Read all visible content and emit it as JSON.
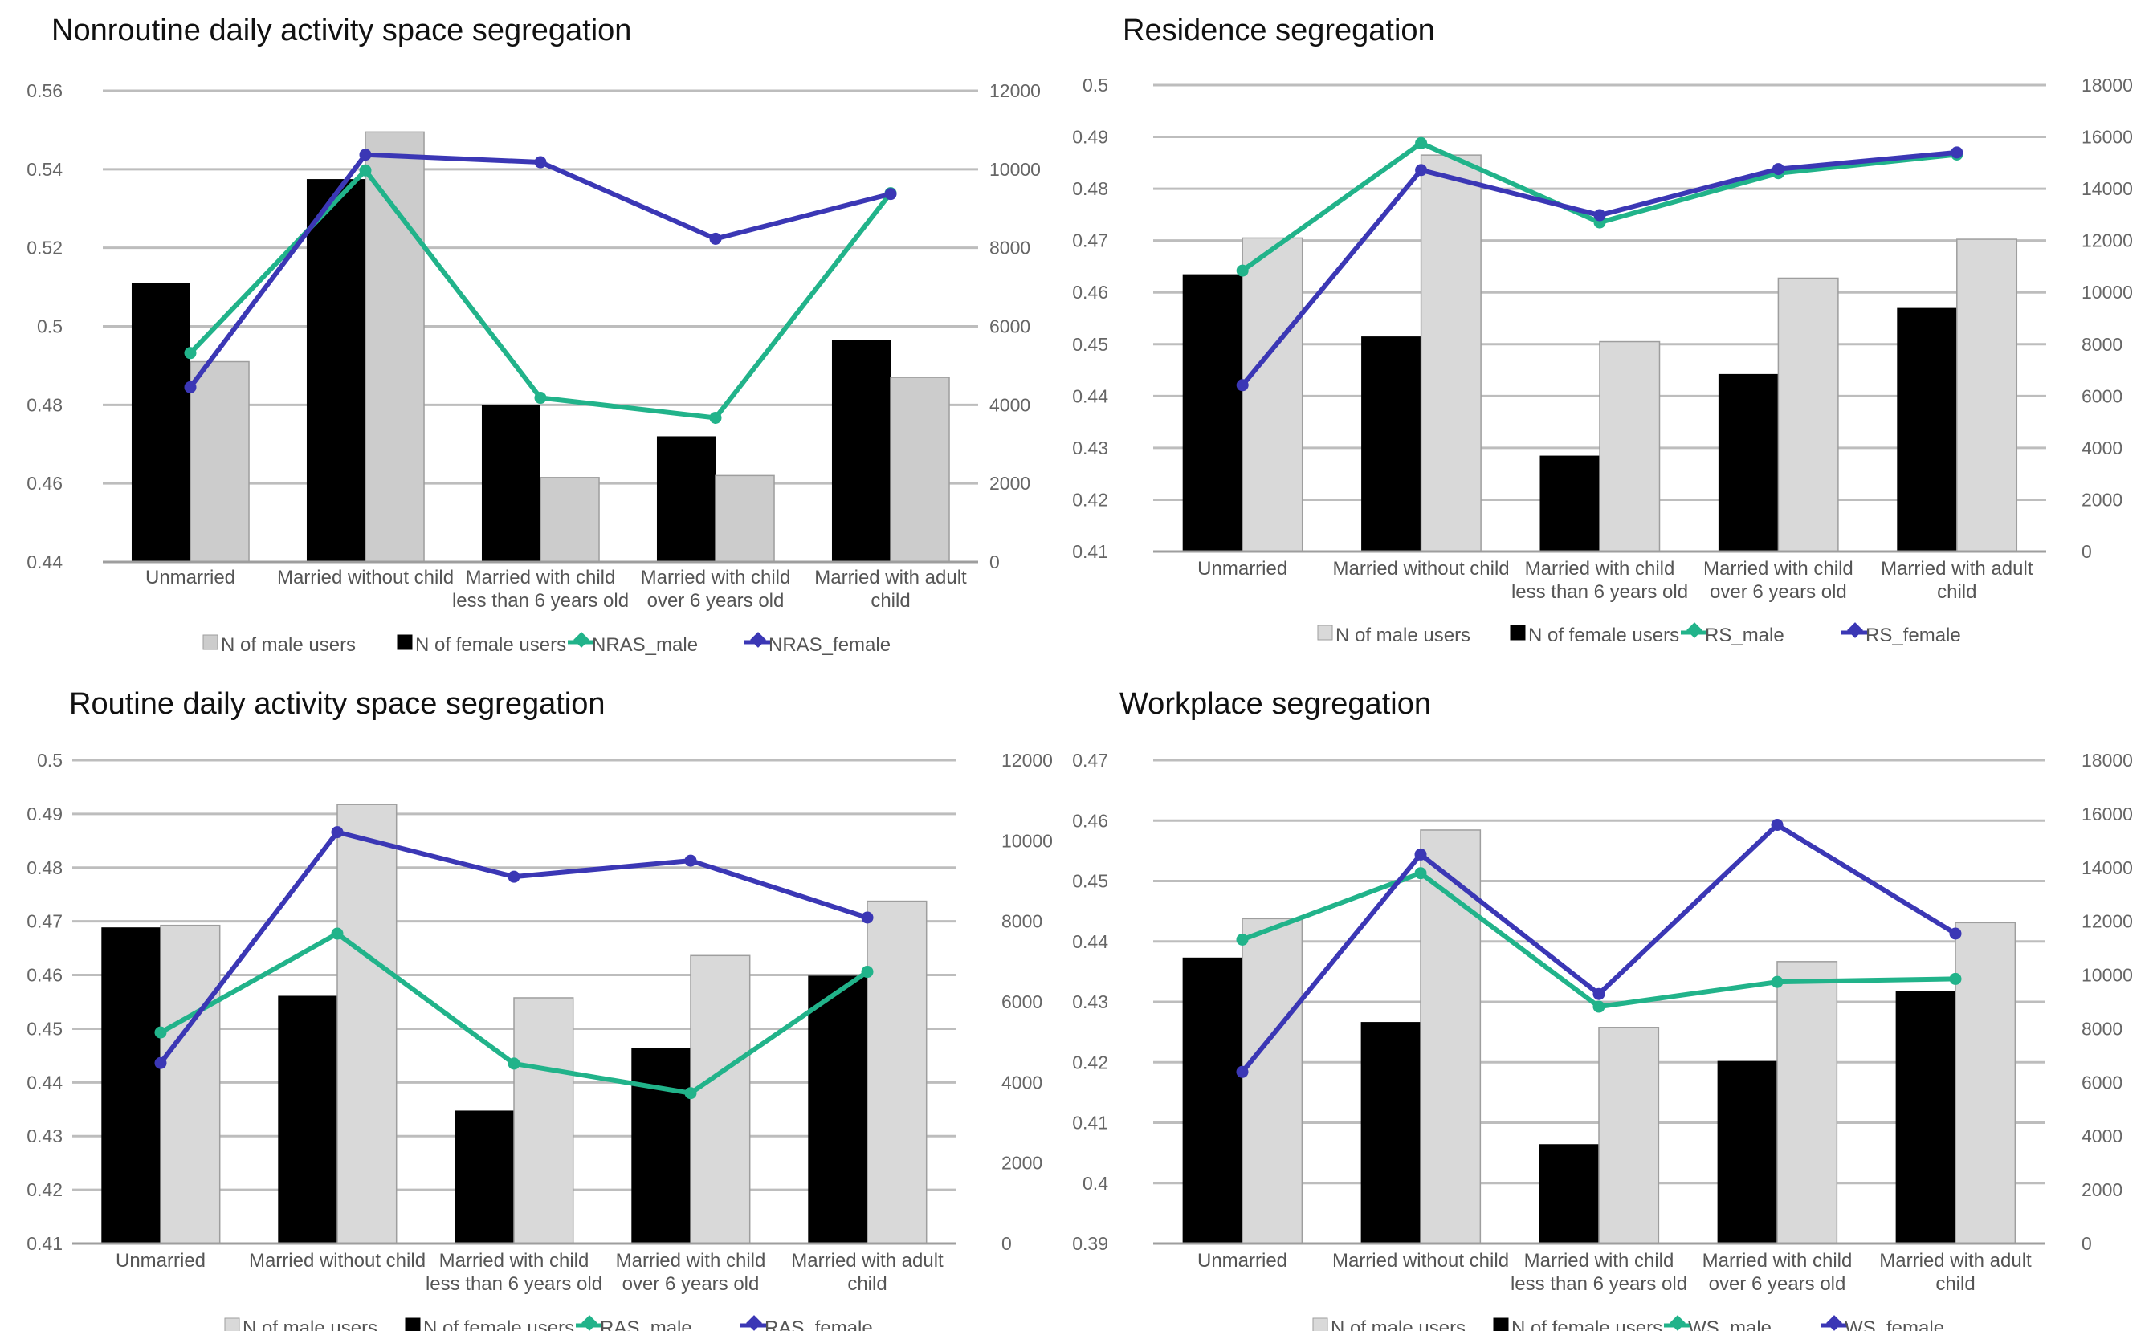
{
  "chart_data": [
    {
      "type": "bar",
      "title": "Nonroutine daily activity space segregation",
      "categories": [
        "Unmarried",
        "Married without child",
        "Married with child less than 6 years old",
        "Married with child over 6 years old",
        "Married with adult child"
      ],
      "category_lines": [
        [
          "Unmarried"
        ],
        [
          "Married without child"
        ],
        [
          "Married with child",
          "less than 6 years old"
        ],
        [
          "Married with child",
          "over 6 years old"
        ],
        [
          "Married with adult",
          "child"
        ]
      ],
      "ylim_left": [
        0.44,
        0.56
      ],
      "yticks_left": [
        "0.44",
        "0.46",
        "0.48",
        "0.5",
        "0.52",
        "0.54",
        "0.56"
      ],
      "ylim_right": [
        0,
        12000
      ],
      "yticks_right": [
        "0",
        "2000",
        "4000",
        "6000",
        "8000",
        "10000",
        "12000"
      ],
      "grid": true,
      "legend_position": "bottom",
      "bar_series": [
        {
          "name": "N of male users",
          "axis": "right",
          "color": "#cccccc",
          "values": [
            5100,
            10950,
            2150,
            2200,
            4700
          ]
        },
        {
          "name": "N of female users",
          "axis": "right",
          "color": "#000000",
          "values": [
            7100,
            9750,
            4000,
            3200,
            5650
          ]
        }
      ],
      "line_series": [
        {
          "name": "NRAS_male",
          "axis": "left",
          "color": "#21b38a",
          "values": [
            0.4932,
            0.5397,
            0.4818,
            0.4767,
            0.5339
          ]
        },
        {
          "name": "NRAS_female",
          "axis": "left",
          "color": "#3b37b5",
          "values": [
            0.4845,
            0.5437,
            0.5418,
            0.5223,
            0.5337
          ]
        }
      ],
      "legend": [
        {
          "name": "N of male users",
          "color": "#cccccc",
          "marker": "square"
        },
        {
          "name": "N of female users",
          "color": "#000000",
          "marker": "square"
        },
        {
          "name": "NRAS_male",
          "color": "#21b38a",
          "marker": "diamond"
        },
        {
          "name": "NRAS_female",
          "color": "#3b37b5",
          "marker": "diamond"
        }
      ]
    },
    {
      "type": "bar",
      "title": "Residence segregation",
      "categories": [
        "Unmarried",
        "Married without child",
        "Married with child less than 6 years old",
        "Married with child over 6 years old",
        "Married with adult child"
      ],
      "category_lines": [
        [
          "Unmarried"
        ],
        [
          "Married without child"
        ],
        [
          "Married with child",
          "less than 6 years old"
        ],
        [
          "Married with child",
          "over 6 years old"
        ],
        [
          "Married with adult",
          "child"
        ]
      ],
      "ylim_left": [
        0.41,
        0.5
      ],
      "yticks_left": [
        "0.41",
        "0.42",
        "0.43",
        "0.44",
        "0.45",
        "0.46",
        "0.47",
        "0.48",
        "0.49",
        "0.5"
      ],
      "ylim_right": [
        0,
        18000
      ],
      "yticks_right": [
        "0",
        "2000",
        "4000",
        "6000",
        "8000",
        "10000",
        "12000",
        "14000",
        "16000",
        "18000"
      ],
      "grid": true,
      "legend_position": "bottom",
      "bar_series": [
        {
          "name": "N of male users",
          "axis": "right",
          "color": "#d9d9d9",
          "values": [
            12100,
            15300,
            8100,
            10550,
            12050
          ]
        },
        {
          "name": "N of female users",
          "axis": "right",
          "color": "#000000",
          "values": [
            10700,
            8300,
            3700,
            6850,
            9400
          ]
        }
      ],
      "line_series": [
        {
          "name": "RS_male",
          "axis": "left",
          "color": "#21b38a",
          "values": [
            0.4642,
            0.4888,
            0.4735,
            0.483,
            0.4866
          ]
        },
        {
          "name": "RS_female",
          "axis": "left",
          "color": "#3b37b5",
          "values": [
            0.4421,
            0.4836,
            0.4749,
            0.4838,
            0.487
          ]
        }
      ],
      "legend": [
        {
          "name": "N of male users",
          "color": "#d9d9d9",
          "marker": "square"
        },
        {
          "name": "N of female users",
          "color": "#000000",
          "marker": "square"
        },
        {
          "name": "RS_male",
          "color": "#21b38a",
          "marker": "diamond"
        },
        {
          "name": "RS_female",
          "color": "#3b37b5",
          "marker": "diamond"
        }
      ]
    },
    {
      "type": "bar",
      "title": "Routine daily activity space segregation",
      "categories": [
        "Unmarried",
        "Married without child",
        "Married with child less than 6 years old",
        "Married with child over 6 years old",
        "Married with adult child"
      ],
      "category_lines": [
        [
          "Unmarried"
        ],
        [
          "Married without child"
        ],
        [
          "Married with child",
          "less than 6 years old"
        ],
        [
          "Married with child",
          "over 6 years old"
        ],
        [
          "Married with adult",
          "child"
        ]
      ],
      "ylim_left": [
        0.41,
        0.5
      ],
      "yticks_left": [
        "0.41",
        "0.42",
        "0.43",
        "0.44",
        "0.45",
        "0.46",
        "0.47",
        "0.48",
        "0.49",
        "0.5"
      ],
      "ylim_right": [
        0,
        12000
      ],
      "yticks_right": [
        "0",
        "2000",
        "4000",
        "6000",
        "8000",
        "10000",
        "12000"
      ],
      "grid": true,
      "legend_position": "bottom",
      "bar_series": [
        {
          "name": "N of male users",
          "axis": "right",
          "color": "#d9d9d9",
          "values": [
            7900,
            10900,
            6100,
            7150,
            8500
          ]
        },
        {
          "name": "N of female users",
          "axis": "right",
          "color": "#000000",
          "values": [
            7850,
            6150,
            3300,
            4850,
            6650
          ]
        }
      ],
      "line_series": [
        {
          "name": "RAS_male",
          "axis": "left",
          "color": "#21b38a",
          "values": [
            0.4493,
            0.4677,
            0.4435,
            0.438,
            0.4606
          ]
        },
        {
          "name": "RAS_female",
          "axis": "left",
          "color": "#3b37b5",
          "values": [
            0.4436,
            0.4866,
            0.4783,
            0.4813,
            0.4707
          ]
        }
      ],
      "legend": [
        {
          "name": "N of male users",
          "color": "#d9d9d9",
          "marker": "square"
        },
        {
          "name": "N of female users",
          "color": "#000000",
          "marker": "square"
        },
        {
          "name": "RAS_male",
          "color": "#21b38a",
          "marker": "diamond"
        },
        {
          "name": "RAS_female",
          "color": "#3b37b5",
          "marker": "diamond"
        }
      ]
    },
    {
      "type": "bar",
      "title": "Workplace segregation",
      "categories": [
        "Unmarried",
        "Married without child",
        "Married with child less than 6 years old",
        "Married with child over 6 years old",
        "Married with adult child"
      ],
      "category_lines": [
        [
          "Unmarried"
        ],
        [
          "Married without child"
        ],
        [
          "Married with child",
          "less than 6 years old"
        ],
        [
          "Married with child",
          "over 6 years old"
        ],
        [
          "Married with adult",
          "child"
        ]
      ],
      "ylim_left": [
        0.39,
        0.47
      ],
      "yticks_left": [
        "0.39",
        "0.4",
        "0.41",
        "0.42",
        "0.43",
        "0.44",
        "0.45",
        "0.46",
        "0.47"
      ],
      "ylim_right": [
        0,
        18000
      ],
      "yticks_right": [
        "0",
        "2000",
        "4000",
        "6000",
        "8000",
        "10000",
        "12000",
        "14000",
        "16000",
        "18000"
      ],
      "grid": true,
      "legend_position": "bottom",
      "bar_series": [
        {
          "name": "N of male users",
          "axis": "right",
          "color": "#d9d9d9",
          "values": [
            12100,
            15400,
            8050,
            10500,
            11950
          ]
        },
        {
          "name": "N of female users",
          "axis": "right",
          "color": "#000000",
          "values": [
            10650,
            8250,
            3700,
            6800,
            9400
          ]
        }
      ],
      "line_series": [
        {
          "name": "WS_male",
          "axis": "left",
          "color": "#21b38a",
          "values": [
            0.4403,
            0.4513,
            0.4292,
            0.4333,
            0.4338
          ]
        },
        {
          "name": "WS_female",
          "axis": "left",
          "color": "#3b37b5",
          "values": [
            0.4184,
            0.4544,
            0.4313,
            0.4593,
            0.4413
          ]
        }
      ],
      "legend": [
        {
          "name": "N of male users",
          "color": "#d9d9d9",
          "marker": "square"
        },
        {
          "name": "N of female users",
          "color": "#000000",
          "marker": "square"
        },
        {
          "name": "WS_male",
          "color": "#21b38a",
          "marker": "diamond"
        },
        {
          "name": "WS_female",
          "color": "#3b37b5",
          "marker": "diamond"
        }
      ]
    }
  ]
}
